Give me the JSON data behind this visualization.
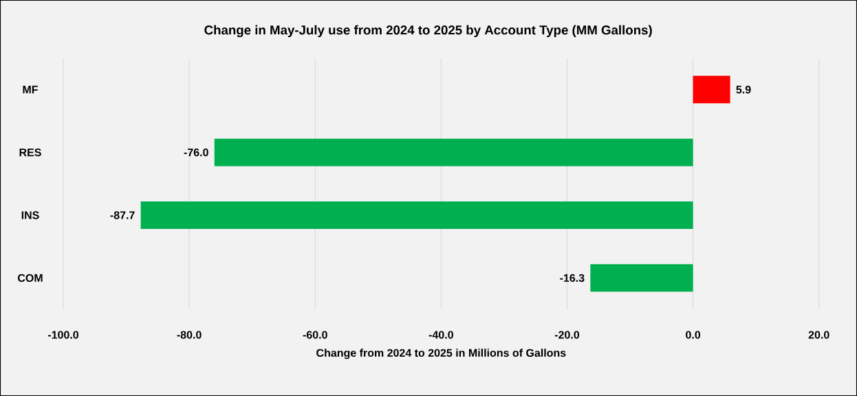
{
  "chart_data": {
    "type": "bar",
    "orientation": "horizontal",
    "title": "Change in May-July use from 2024 to 2025 by Account Type (MM Gallons)",
    "xlabel": "Change from 2024 to 2025 in Millions of Gallons",
    "categories": [
      "MF",
      "RES",
      "INS",
      "COM"
    ],
    "values": [
      5.9,
      -76.0,
      -87.7,
      -16.3
    ],
    "colors": [
      "#ff0000",
      "#00b050",
      "#00b050",
      "#00b050"
    ],
    "value_labels": [
      "5.9",
      "-76.0",
      "-87.7",
      "-16.3"
    ],
    "xlim": [
      -100,
      20
    ],
    "xticks": [
      {
        "value": -100,
        "label": "-100.0"
      },
      {
        "value": -80,
        "label": "-80.0"
      },
      {
        "value": -60,
        "label": "-60.0"
      },
      {
        "value": -40,
        "label": "-40.0"
      },
      {
        "value": -20,
        "label": "-20.0"
      },
      {
        "value": 0,
        "label": "0.0"
      },
      {
        "value": 20,
        "label": "20.0"
      }
    ],
    "grid": "x"
  }
}
